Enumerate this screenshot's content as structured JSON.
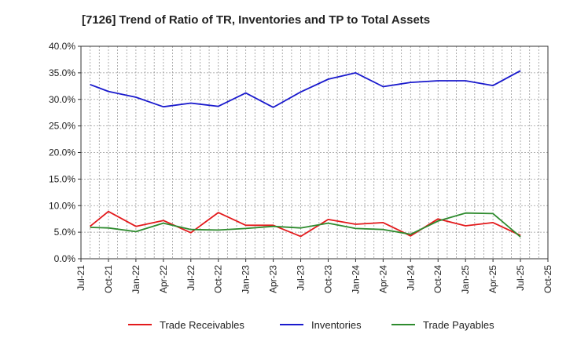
{
  "chart_data": {
    "type": "line",
    "title": "[7126]  Trend of Ratio of TR, Inventories and TP to Total Assets",
    "xlabel": "",
    "ylabel": "",
    "ylim": [
      0,
      40
    ],
    "y_ticks": [
      "0.0%",
      "5.0%",
      "10.0%",
      "15.0%",
      "20.0%",
      "25.0%",
      "30.0%",
      "35.0%",
      "40.0%"
    ],
    "x_ticks": [
      "Jul-21",
      "Oct-21",
      "Jan-22",
      "Apr-22",
      "Jul-22",
      "Oct-22",
      "Jan-23",
      "Apr-23",
      "Jul-23",
      "Oct-23",
      "Jan-24",
      "Apr-24",
      "Jul-24",
      "Oct-24",
      "Jan-25",
      "Apr-25",
      "Jul-25",
      "Oct-25"
    ],
    "x": [
      "Aug-21",
      "Oct-21",
      "Jan-22",
      "Apr-22",
      "Jul-22",
      "Oct-22",
      "Jan-23",
      "Apr-23",
      "Jul-23",
      "Oct-23",
      "Jan-24",
      "Apr-24",
      "Jul-24",
      "Oct-24",
      "Jan-25",
      "Apr-25",
      "Jul-25"
    ],
    "grid": true,
    "legend_position": "bottom",
    "series": [
      {
        "name": "Trade Receivables",
        "color": "#e31a1c",
        "values": [
          6.1,
          8.9,
          6.1,
          7.2,
          4.9,
          8.7,
          6.3,
          6.3,
          4.2,
          7.4,
          6.5,
          6.8,
          4.3,
          7.5,
          6.2,
          6.8,
          4.4
        ]
      },
      {
        "name": "Inventories",
        "color": "#1a1acd",
        "values": [
          32.8,
          31.5,
          30.4,
          28.6,
          29.3,
          28.7,
          31.2,
          28.5,
          31.4,
          33.8,
          35.0,
          32.4,
          33.2,
          33.5,
          33.5,
          32.6,
          35.4
        ]
      },
      {
        "name": "Trade Payables",
        "color": "#2e8b2e",
        "values": [
          5.9,
          5.8,
          5.1,
          6.7,
          5.5,
          5.4,
          5.7,
          6.1,
          5.8,
          6.7,
          5.7,
          5.5,
          4.6,
          7.1,
          8.6,
          8.5,
          4.1
        ]
      }
    ]
  }
}
